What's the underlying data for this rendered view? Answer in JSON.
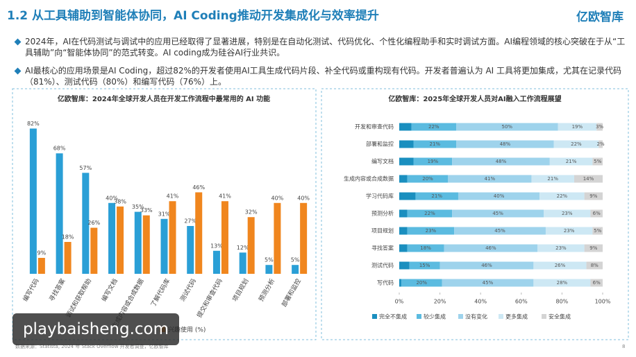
{
  "header": {
    "title": "1.2 从工具辅助到智能体协同，AI Coding推动开发集成化与效率提升",
    "logo": "亿欧智库"
  },
  "bullets": [
    "2024年，AI在代码测试与调试中的应用已经取得了显著进展，特别是在自动化测试、代码优化、个性化编程助手和实时调试方面。AI编程领域的核心突破在于从“工具辅助”向“智能体协同”的范式转变。AI coding成为硅谷AI行业共识。",
    "AI最核心的应用场景是AI Coding，超过82%的开发者使用AI工具生成代码片段、补全代码或重构现有代码。开发者普遍认为 AI 工具将更加集成，尤其在记录代码（81%）、测试代码（80%）和编写代码（76%）上。"
  ],
  "chart_data": [
    {
      "type": "bar",
      "title": "亿欧智库：2024年全球开发人员在开发工作流程中最常用的 AI 功能",
      "categories": [
        "编写代码",
        "寻找答案",
        "调试和获取帮助",
        "编写文档",
        "生成内容或合成数据",
        "了解代码库",
        "测试代码",
        "提交和审查代码",
        "项目规划",
        "预测分析",
        "部署和监控"
      ],
      "ylim": [
        0,
        90
      ],
      "series": [
        {
          "color": "#2a9fd6",
          "values": [
            82,
            68,
            57,
            40,
            35,
            31,
            27,
            13,
            12,
            5,
            5
          ],
          "value_labels": [
            "82%",
            "68%",
            "57%",
            "40%",
            "35%",
            "31%",
            "27%",
            "13%",
            "12%",
            "5%",
            "5%"
          ]
        },
        {
          "name": "兴趣使用 (%)",
          "color": "#f0861e",
          "values": [
            9,
            18,
            26,
            38,
            33,
            41,
            46,
            41,
            32,
            40,
            40
          ],
          "value_labels": [
            "9%",
            "18%",
            "26%",
            "38%",
            "33%",
            "41%",
            "46%",
            "41%",
            "32%",
            "40%",
            "40%"
          ]
        }
      ]
    },
    {
      "type": "stacked_bar_h",
      "title": "亿欧智库：2025年全球开发人员对AI融入工作流程展望",
      "categories": [
        "开发和审查代码",
        "部署和监控",
        "编写文档",
        "生成内容或合成数据",
        "学习代码库",
        "预测分析",
        "项目规划",
        "寻找答案",
        "测试代码",
        "写代码"
      ],
      "xlim": [
        0,
        100
      ],
      "xticks": [
        {
          "value": 0,
          "label": "0%"
        },
        {
          "value": 20,
          "label": "20%"
        },
        {
          "value": 40,
          "label": "40%"
        },
        {
          "value": 60,
          "label": "60%"
        },
        {
          "value": 80,
          "label": "80%"
        },
        {
          "value": 100,
          "label": "100%"
        }
      ],
      "series": [
        {
          "name": "完全不集成",
          "color": "#1a8fbf",
          "values": [
            6,
            7,
            7,
            4,
            8,
            4,
            4,
            4,
            5,
            1
          ]
        },
        {
          "name": "较少集成",
          "color": "#5bbbe0",
          "values": [
            22,
            21,
            19,
            20,
            21,
            22,
            23,
            18,
            15,
            20
          ],
          "value_labels": [
            "22%",
            "21%",
            "19%",
            "20%",
            "21%",
            "22%",
            "23%",
            "18%",
            "15%",
            "20%"
          ]
        },
        {
          "name": "没有变化",
          "color": "#9ed3ec",
          "values": [
            50,
            48,
            48,
            41,
            40,
            45,
            45,
            46,
            46,
            45
          ],
          "value_labels": [
            "50%",
            "48%",
            "48%",
            "41%",
            "40%",
            "45%",
            "45%",
            "46%",
            "46%",
            "45%"
          ]
        },
        {
          "name": "更多集成",
          "color": "#cde8f4",
          "values": [
            19,
            22,
            21,
            21,
            22,
            23,
            23,
            23,
            26,
            28
          ],
          "value_labels": [
            "19%",
            "22%",
            "21%",
            "21%",
            "22%",
            "23%",
            "23%",
            "23%",
            "26%",
            "28%"
          ]
        },
        {
          "name": "安全集成",
          "color": "#d4d4d4",
          "values": [
            3,
            2,
            5,
            14,
            9,
            6,
            5,
            9,
            8,
            6
          ],
          "value_labels": [
            "3%",
            "2%",
            "5%",
            "14%",
            "9%",
            "6%",
            "5%",
            "9%",
            "8%",
            "6%"
          ]
        }
      ]
    }
  ],
  "footer": {
    "source": "数据来源：Statista, 2024 年 Stack Overflow 开发者调查，亿欧智库",
    "page": "8"
  },
  "watermark": "playbaisheng.com"
}
